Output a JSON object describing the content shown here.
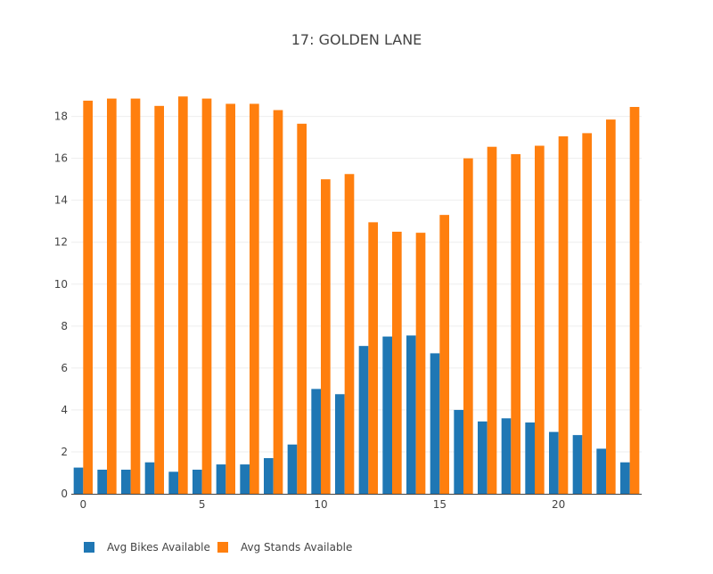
{
  "chart_data": {
    "type": "bar",
    "title": "17: GOLDEN LANE",
    "xlabel": "",
    "ylabel": "",
    "x": [
      0,
      1,
      2,
      3,
      4,
      5,
      6,
      7,
      8,
      9,
      10,
      11,
      12,
      13,
      14,
      15,
      16,
      17,
      18,
      19,
      20,
      21,
      22,
      23
    ],
    "xlim": [
      -0.5,
      23.5
    ],
    "ylim": [
      0,
      19.3
    ],
    "x_ticks": [
      0,
      5,
      10,
      15,
      20
    ],
    "y_ticks": [
      0,
      2,
      4,
      6,
      8,
      10,
      12,
      14,
      16,
      18
    ],
    "grid": true,
    "legend_position": "bottom-left",
    "series": [
      {
        "name": "Avg Bikes Available",
        "color": "#1f77b4",
        "values": [
          1.25,
          1.15,
          1.15,
          1.5,
          1.05,
          1.15,
          1.4,
          1.4,
          1.7,
          2.35,
          5.0,
          4.75,
          7.05,
          7.5,
          7.55,
          6.7,
          4.0,
          3.45,
          3.6,
          3.4,
          2.95,
          2.8,
          2.15,
          1.5
        ]
      },
      {
        "name": "Avg Stands Available",
        "color": "#ff7f0e",
        "values": [
          18.75,
          18.85,
          18.85,
          18.5,
          18.95,
          18.85,
          18.6,
          18.6,
          18.3,
          17.65,
          15.0,
          15.25,
          12.95,
          12.5,
          12.45,
          13.3,
          16.0,
          16.55,
          16.2,
          16.6,
          17.05,
          17.2,
          17.85,
          18.45
        ]
      }
    ]
  }
}
